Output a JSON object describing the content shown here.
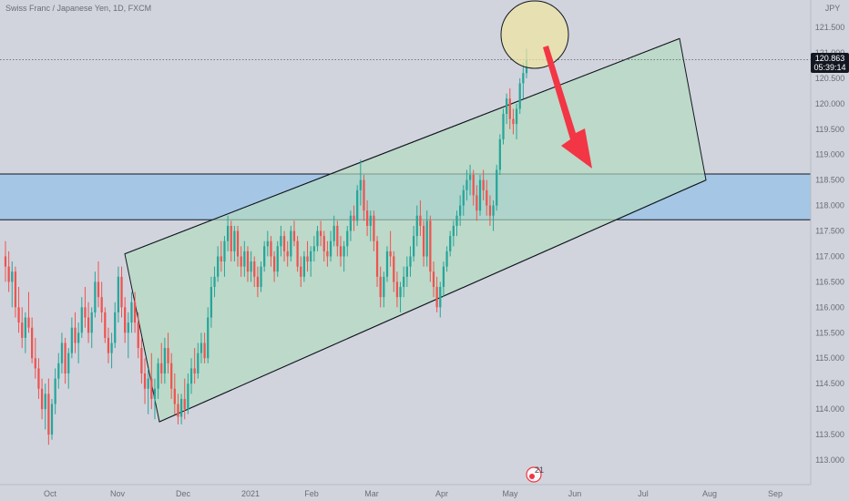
{
  "chart_data": {
    "type": "candlestick",
    "title": "Swiss Franc / Japanese Yen, 1D, FXCM",
    "currency": "JPY",
    "ylim": [
      112.5,
      121.5
    ],
    "y_ticks": [
      "121.500",
      "121.000",
      "120.500",
      "120.000",
      "119.500",
      "119.000",
      "118.500",
      "118.000",
      "117.500",
      "117.000",
      "116.500",
      "116.000",
      "115.500",
      "115.000",
      "114.500",
      "114.000",
      "113.500",
      "113.000"
    ],
    "x_ticks": [
      "Oct",
      "Nov",
      "Dec",
      "2021",
      "Feb",
      "Mar",
      "Apr",
      "May",
      "Jun",
      "Jul",
      "Aug",
      "Sep"
    ],
    "last_price": "120.863",
    "countdown": "05:39:14",
    "event_badge": "21",
    "zone": {
      "low": 117.72,
      "high": 118.62
    },
    "channel": [
      [
        113.75,
        117.05
      ],
      [
        121.28,
        118.5
      ],
      [
        113.75,
        115.8
      ]
    ],
    "colors": {
      "up": "#26a69a",
      "down": "#ef5350",
      "zone": "#9ec3e6",
      "channel": "#b2dbbf",
      "arrow": "#f23645",
      "circle": "#f0e6a0"
    },
    "candles": [
      [
        117.0,
        117.3,
        116.5,
        116.8
      ],
      [
        116.8,
        117.1,
        116.3,
        116.5
      ],
      [
        116.5,
        116.9,
        116.0,
        116.7
      ],
      [
        116.7,
        116.8,
        115.8,
        116.0
      ],
      [
        116.0,
        116.4,
        115.5,
        115.7
      ],
      [
        115.7,
        116.0,
        115.2,
        115.4
      ],
      [
        115.4,
        115.9,
        115.1,
        115.8
      ],
      [
        115.8,
        116.3,
        115.5,
        115.6
      ],
      [
        115.6,
        115.8,
        114.9,
        115.0
      ],
      [
        115.0,
        115.4,
        114.6,
        114.8
      ],
      [
        114.8,
        115.0,
        114.2,
        114.4
      ],
      [
        114.4,
        114.6,
        113.8,
        114.0
      ],
      [
        114.0,
        114.5,
        113.6,
        114.3
      ],
      [
        114.3,
        114.6,
        113.3,
        113.5
      ],
      [
        113.5,
        114.2,
        113.4,
        114.1
      ],
      [
        114.1,
        114.8,
        113.9,
        114.6
      ],
      [
        114.6,
        115.1,
        114.4,
        114.9
      ],
      [
        114.9,
        115.5,
        114.7,
        115.3
      ],
      [
        115.3,
        115.4,
        114.5,
        114.7
      ],
      [
        114.7,
        115.2,
        114.4,
        115.1
      ],
      [
        115.1,
        115.8,
        115.0,
        115.6
      ],
      [
        115.6,
        115.9,
        115.1,
        115.3
      ],
      [
        115.3,
        115.7,
        114.9,
        115.5
      ],
      [
        115.5,
        116.2,
        115.4,
        116.0
      ],
      [
        116.0,
        116.4,
        115.6,
        115.8
      ],
      [
        115.8,
        116.1,
        115.3,
        115.5
      ],
      [
        115.5,
        116.0,
        115.2,
        115.9
      ],
      [
        115.9,
        116.7,
        115.8,
        116.5
      ],
      [
        116.5,
        116.9,
        116.0,
        116.2
      ],
      [
        116.2,
        116.5,
        115.7,
        115.9
      ],
      [
        115.9,
        116.0,
        115.3,
        115.4
      ],
      [
        115.4,
        115.6,
        114.9,
        115.1
      ],
      [
        115.1,
        115.5,
        114.8,
        115.3
      ],
      [
        115.3,
        116.1,
        115.2,
        115.9
      ],
      [
        115.9,
        116.8,
        115.7,
        116.6
      ],
      [
        116.6,
        116.8,
        115.8,
        116.0
      ],
      [
        116.0,
        116.2,
        115.3,
        115.5
      ],
      [
        115.5,
        115.9,
        115.0,
        115.7
      ],
      [
        115.7,
        116.3,
        115.5,
        116.1
      ],
      [
        116.1,
        116.3,
        115.5,
        115.7
      ],
      [
        115.7,
        115.9,
        115.0,
        115.2
      ],
      [
        115.2,
        115.4,
        114.5,
        114.7
      ],
      [
        114.7,
        115.0,
        114.1,
        114.4
      ],
      [
        114.4,
        114.8,
        113.9,
        114.6
      ],
      [
        114.6,
        115.1,
        114.0,
        114.2
      ],
      [
        114.2,
        114.6,
        113.8,
        114.4
      ],
      [
        114.4,
        115.0,
        114.2,
        114.9
      ],
      [
        114.9,
        115.3,
        114.5,
        114.7
      ],
      [
        114.7,
        115.4,
        114.5,
        115.2
      ],
      [
        115.2,
        115.5,
        114.7,
        114.9
      ],
      [
        114.9,
        115.1,
        114.2,
        114.4
      ],
      [
        114.4,
        114.7,
        113.9,
        114.1
      ],
      [
        114.1,
        114.3,
        113.7,
        113.85
      ],
      [
        113.85,
        114.3,
        113.7,
        114.2
      ],
      [
        114.2,
        114.6,
        113.8,
        114.0
      ],
      [
        114.0,
        114.7,
        113.9,
        114.5
      ],
      [
        114.5,
        115.0,
        114.3,
        114.8
      ],
      [
        114.8,
        115.2,
        114.5,
        114.7
      ],
      [
        114.7,
        115.3,
        114.6,
        115.1
      ],
      [
        115.1,
        115.5,
        114.9,
        115.3
      ],
      [
        115.3,
        115.5,
        114.9,
        115.0
      ],
      [
        115.0,
        116.0,
        114.9,
        115.8
      ],
      [
        115.8,
        116.6,
        115.6,
        116.4
      ],
      [
        116.4,
        116.8,
        116.2,
        116.6
      ],
      [
        116.6,
        117.2,
        116.5,
        117.0
      ],
      [
        117.0,
        117.3,
        116.7,
        116.9
      ],
      [
        116.9,
        117.4,
        116.6,
        117.3
      ],
      [
        117.3,
        117.8,
        117.1,
        117.6
      ],
      [
        117.6,
        117.7,
        116.9,
        117.1
      ],
      [
        117.1,
        117.6,
        116.9,
        117.5
      ],
      [
        117.5,
        117.6,
        116.8,
        117.0
      ],
      [
        117.0,
        117.2,
        116.6,
        116.8
      ],
      [
        116.8,
        117.3,
        116.6,
        117.1
      ],
      [
        117.1,
        117.2,
        116.5,
        116.7
      ],
      [
        116.7,
        117.1,
        116.5,
        116.9
      ],
      [
        116.9,
        117.0,
        116.4,
        116.6
      ],
      [
        116.6,
        116.8,
        116.2,
        116.4
      ],
      [
        116.4,
        116.9,
        116.3,
        116.8
      ],
      [
        116.8,
        117.3,
        116.7,
        117.2
      ],
      [
        117.2,
        117.5,
        117.0,
        117.3
      ],
      [
        117.3,
        117.4,
        116.8,
        117.0
      ],
      [
        117.0,
        117.1,
        116.5,
        116.7
      ],
      [
        116.7,
        117.3,
        116.6,
        117.2
      ],
      [
        117.2,
        117.6,
        117.0,
        117.4
      ],
      [
        117.4,
        117.5,
        116.9,
        117.1
      ],
      [
        117.1,
        117.3,
        116.8,
        117.0
      ],
      [
        117.0,
        117.6,
        116.9,
        117.5
      ],
      [
        117.5,
        117.7,
        117.2,
        117.3
      ],
      [
        117.3,
        117.4,
        116.7,
        116.8
      ],
      [
        116.8,
        117.0,
        116.4,
        116.6
      ],
      [
        116.6,
        117.1,
        116.5,
        117.0
      ],
      [
        117.0,
        117.3,
        116.7,
        116.9
      ],
      [
        116.9,
        117.2,
        116.6,
        117.1
      ],
      [
        117.1,
        117.4,
        116.9,
        117.2
      ],
      [
        117.2,
        117.6,
        117.1,
        117.5
      ],
      [
        117.5,
        117.7,
        117.2,
        117.4
      ],
      [
        117.4,
        117.5,
        116.9,
        117.1
      ],
      [
        117.1,
        117.3,
        116.8,
        117.0
      ],
      [
        117.0,
        117.5,
        116.9,
        117.3
      ],
      [
        117.3,
        117.8,
        117.2,
        117.6
      ],
      [
        117.6,
        117.7,
        117.0,
        117.2
      ],
      [
        117.2,
        117.4,
        116.8,
        117.0
      ],
      [
        117.0,
        117.3,
        116.7,
        117.2
      ],
      [
        117.2,
        117.6,
        117.0,
        117.5
      ],
      [
        117.5,
        117.9,
        117.3,
        117.8
      ],
      [
        117.8,
        118.0,
        117.5,
        117.7
      ],
      [
        117.7,
        118.4,
        117.6,
        118.3
      ],
      [
        118.3,
        118.9,
        118.0,
        118.5
      ],
      [
        118.5,
        118.6,
        117.7,
        117.9
      ],
      [
        117.9,
        118.1,
        117.4,
        117.6
      ],
      [
        117.6,
        117.9,
        117.3,
        117.8
      ],
      [
        117.8,
        117.9,
        117.1,
        117.3
      ],
      [
        117.3,
        117.4,
        116.4,
        116.6
      ],
      [
        116.6,
        116.8,
        116.0,
        116.2
      ],
      [
        116.2,
        116.7,
        116.0,
        116.6
      ],
      [
        116.6,
        117.2,
        116.5,
        117.1
      ],
      [
        117.1,
        117.5,
        116.8,
        117.0
      ],
      [
        117.0,
        117.1,
        116.3,
        116.5
      ],
      [
        116.5,
        116.7,
        116.0,
        116.2
      ],
      [
        116.2,
        116.5,
        115.9,
        116.4
      ],
      [
        116.4,
        116.8,
        116.2,
        116.6
      ],
      [
        116.6,
        117.0,
        116.4,
        116.8
      ],
      [
        116.8,
        117.2,
        116.6,
        117.0
      ],
      [
        117.0,
        117.6,
        116.9,
        117.4
      ],
      [
        117.4,
        118.0,
        117.2,
        117.8
      ],
      [
        117.8,
        118.1,
        117.4,
        117.6
      ],
      [
        117.6,
        117.7,
        116.8,
        117.0
      ],
      [
        117.0,
        117.9,
        116.8,
        117.7
      ],
      [
        117.7,
        117.8,
        116.5,
        116.7
      ],
      [
        116.7,
        116.9,
        116.2,
        116.4
      ],
      [
        116.4,
        116.6,
        115.9,
        116.0
      ],
      [
        116.0,
        116.5,
        115.8,
        116.4
      ],
      [
        116.4,
        116.9,
        116.2,
        116.8
      ],
      [
        116.8,
        117.2,
        116.7,
        117.1
      ],
      [
        117.1,
        117.5,
        117.0,
        117.4
      ],
      [
        117.4,
        117.7,
        117.2,
        117.6
      ],
      [
        117.6,
        117.9,
        117.4,
        117.8
      ],
      [
        117.8,
        118.2,
        117.6,
        118.0
      ],
      [
        118.0,
        118.4,
        117.8,
        118.3
      ],
      [
        118.3,
        118.7,
        118.1,
        118.5
      ],
      [
        118.5,
        118.8,
        118.2,
        118.6
      ],
      [
        118.6,
        118.7,
        118.0,
        118.2
      ],
      [
        118.2,
        118.4,
        117.7,
        117.9
      ],
      [
        117.9,
        118.6,
        117.8,
        118.5
      ],
      [
        118.5,
        118.7,
        118.1,
        118.3
      ],
      [
        118.3,
        118.5,
        117.8,
        118.0
      ],
      [
        118.0,
        118.2,
        117.6,
        117.8
      ],
      [
        117.8,
        118.1,
        117.5,
        118.0
      ],
      [
        118.0,
        118.8,
        117.9,
        118.7
      ],
      [
        118.7,
        119.4,
        118.6,
        119.3
      ],
      [
        119.3,
        119.9,
        119.2,
        119.8
      ],
      [
        119.8,
        120.2,
        119.6,
        120.1
      ],
      [
        120.1,
        120.3,
        119.5,
        119.7
      ],
      [
        119.7,
        119.9,
        119.4,
        119.6
      ],
      [
        119.6,
        120.0,
        119.3,
        119.9
      ],
      [
        119.9,
        120.5,
        119.8,
        120.4
      ],
      [
        120.4,
        120.8,
        120.1,
        120.6
      ],
      [
        120.6,
        121.08,
        120.5,
        120.86
      ]
    ]
  }
}
